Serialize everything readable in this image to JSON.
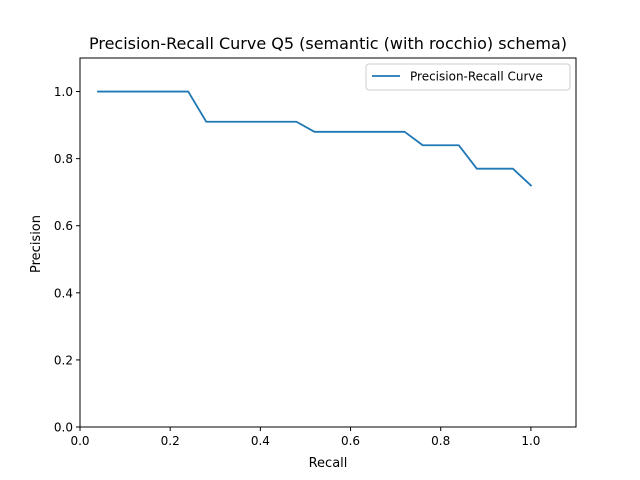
{
  "chart_data": {
    "type": "line",
    "title": "Precision-Recall Curve Q5 (semantic (with rocchio) schema)",
    "xlabel": "Recall",
    "ylabel": "Precision",
    "xlim": [
      0.0,
      1.1
    ],
    "ylim": [
      0.0,
      1.1
    ],
    "xticks": [
      0.0,
      0.2,
      0.4,
      0.6,
      0.8,
      1.0
    ],
    "xtick_labels": [
      "0.0",
      "0.2",
      "0.4",
      "0.6",
      "0.8",
      "1.0"
    ],
    "yticks": [
      0.0,
      0.2,
      0.4,
      0.6,
      0.8,
      1.0
    ],
    "ytick_labels": [
      "0.0",
      "0.2",
      "0.4",
      "0.6",
      "0.8",
      "1.0"
    ],
    "grid": false,
    "legend": "upper right",
    "series": [
      {
        "name": "Precision-Recall Curve",
        "color": "#1f77b4",
        "x": [
          0.04,
          0.08,
          0.12,
          0.16,
          0.2,
          0.24,
          0.28,
          0.32,
          0.36,
          0.4,
          0.44,
          0.48,
          0.52,
          0.56,
          0.6,
          0.64,
          0.68,
          0.72,
          0.76,
          0.8,
          0.84,
          0.88,
          0.92,
          0.96,
          1.0
        ],
        "y": [
          1.0,
          1.0,
          1.0,
          1.0,
          1.0,
          1.0,
          0.91,
          0.91,
          0.91,
          0.91,
          0.91,
          0.91,
          0.88,
          0.88,
          0.88,
          0.88,
          0.88,
          0.88,
          0.84,
          0.84,
          0.84,
          0.77,
          0.77,
          0.77,
          0.72
        ]
      }
    ]
  }
}
